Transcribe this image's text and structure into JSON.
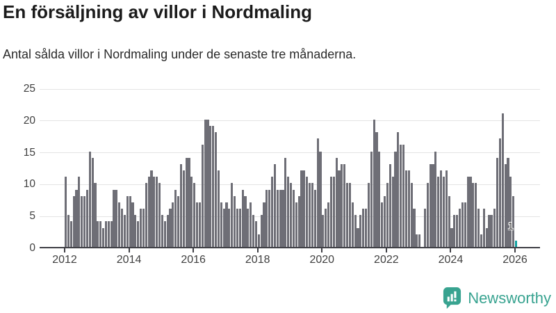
{
  "header": {
    "title": "En försäljning av villor i Nordmaling",
    "subtitle": "Antal sålda villor i Nordmaling under de senaste tre månaderna."
  },
  "chart_data": {
    "type": "bar",
    "title": "En försäljning av villor i Nordmaling",
    "subtitle": "Antal sålda villor i Nordmaling under de senaste tre månaderna.",
    "x_start": "2012-01",
    "x_end": "2026-01",
    "x_frequency": "monthly",
    "values": [
      11,
      5,
      4,
      8,
      9,
      11,
      8,
      8,
      9,
      15,
      14,
      10,
      4,
      4,
      3,
      4,
      4,
      4,
      9,
      9,
      7,
      6,
      5,
      8,
      8,
      7,
      5,
      4,
      6,
      6,
      10,
      11,
      12,
      11,
      11,
      10,
      5,
      4,
      5,
      6,
      7,
      9,
      8,
      13,
      12,
      14,
      14,
      11,
      10,
      7,
      7,
      16,
      20,
      20,
      19,
      19,
      18,
      12,
      7,
      6,
      7,
      6,
      10,
      8,
      6,
      6,
      9,
      8,
      6,
      7,
      5,
      4,
      2,
      5,
      7,
      9,
      9,
      11,
      13,
      9,
      9,
      9,
      14,
      11,
      10,
      9,
      7,
      8,
      12,
      12,
      11,
      10,
      10,
      9,
      17,
      15,
      5,
      6,
      7,
      11,
      11,
      14,
      12,
      13,
      13,
      10,
      10,
      7,
      5,
      3,
      5,
      6,
      6,
      10,
      15,
      20,
      18,
      15,
      7,
      8,
      10,
      13,
      11,
      15,
      18,
      16,
      16,
      12,
      12,
      10,
      6,
      2,
      2,
      0,
      6,
      10,
      13,
      13,
      15,
      11,
      12,
      11,
      12,
      8,
      3,
      5,
      5,
      6,
      7,
      7,
      11,
      11,
      10,
      10,
      6,
      2,
      6,
      3,
      5,
      5,
      6,
      14,
      17,
      21,
      13,
      14,
      11,
      8,
      1
    ],
    "highlight_last_n": 1,
    "highlight_value_label": "1",
    "ylim": [
      0,
      25
    ],
    "yticks": [
      0,
      5,
      10,
      15,
      20,
      25
    ],
    "xtick_labels": [
      "2012",
      "2014",
      "2016",
      "2018",
      "2020",
      "2022",
      "2024",
      "2026"
    ],
    "grid": "horizontal",
    "legend": "none",
    "bar_color": "#6e6e76",
    "highlight_color": "#12a1a1",
    "axis_color": "#3e3e44",
    "gridline_color": "#e4e4e4"
  },
  "footer": {
    "brand": "Newsworthy",
    "brand_color": "#38a390"
  }
}
